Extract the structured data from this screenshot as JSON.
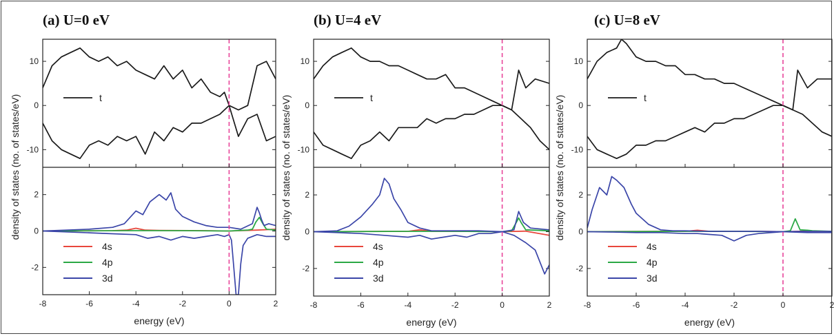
{
  "figure": {
    "ylabel": "density of states (no. of states/eV)",
    "xlabel": "energy (eV)"
  },
  "colors": {
    "t": "#1a1a1a",
    "4s": "#e8463c",
    "4p": "#2aa845",
    "3d": "#3a45a8",
    "fermi": "#e8449a"
  },
  "chart_data": [
    {
      "type": "line",
      "title": "(a) U=0 eV",
      "xlabel": "energy (eV)",
      "ylabel": "density of states (no. of states/eV)",
      "xlim": [
        -8,
        2
      ],
      "xticks": [
        "-8",
        "-6",
        "-4",
        "-2",
        "0",
        "2"
      ],
      "top": {
        "ylim": [
          -14,
          15
        ],
        "yticks": [
          "10",
          "0",
          "-10"
        ],
        "legend": [
          "t"
        ],
        "series": [
          {
            "name": "t",
            "spin": "up",
            "x": [
              -8,
              -7.6,
              -7.2,
              -6.8,
              -6.4,
              -6.0,
              -5.6,
              -5.2,
              -4.8,
              -4.4,
              -4.0,
              -3.6,
              -3.2,
              -2.8,
              -2.4,
              -2.0,
              -1.6,
              -1.2,
              -0.8,
              -0.4,
              -0.2,
              0.0,
              0.4,
              0.8,
              1.2,
              1.6,
              2.0
            ],
            "y": [
              4,
              9,
              11,
              12,
              13,
              11,
              10,
              11,
              9,
              10,
              8,
              7,
              6,
              9,
              6,
              8,
              4,
              6,
              3,
              2,
              3,
              0,
              -1,
              0,
              9,
              10,
              6
            ]
          },
          {
            "name": "t",
            "spin": "down",
            "x": [
              -8,
              -7.6,
              -7.2,
              -6.8,
              -6.4,
              -6.0,
              -5.6,
              -5.2,
              -4.8,
              -4.4,
              -4.0,
              -3.6,
              -3.2,
              -2.8,
              -2.4,
              -2.0,
              -1.6,
              -1.2,
              -0.8,
              -0.4,
              -0.2,
              0.0,
              0.4,
              0.8,
              1.2,
              1.6,
              2.0
            ],
            "y": [
              -4,
              -8,
              -10,
              -11,
              -12,
              -9,
              -8,
              -9,
              -7,
              -8,
              -7,
              -11,
              -6,
              -8,
              -5,
              -6,
              -4,
              -4,
              -3,
              -2,
              -1,
              0,
              -7,
              -3,
              -2,
              -8,
              -7
            ]
          }
        ]
      },
      "bottom": {
        "ylim": [
          -3.5,
          3.5
        ],
        "yticks": [
          "2",
          "0",
          "-2"
        ],
        "legend": [
          "4s",
          "4p",
          "3d"
        ],
        "series": [
          {
            "name": "3d",
            "spin": "up",
            "x": [
              -8,
              -7,
              -6,
              -5,
              -4.5,
              -4.0,
              -3.7,
              -3.4,
              -3.0,
              -2.7,
              -2.5,
              -2.3,
              -2.0,
              -1.5,
              -1.0,
              -0.5,
              0,
              0.5,
              1.0,
              1.2,
              1.3,
              1.4,
              1.5,
              1.7,
              2.0
            ],
            "y": [
              0,
              0.05,
              0.1,
              0.2,
              0.4,
              1.1,
              0.9,
              1.6,
              2.0,
              1.7,
              2.1,
              1.2,
              0.8,
              0.5,
              0.3,
              0.2,
              0.2,
              0.1,
              0.4,
              1.3,
              1.0,
              0.6,
              0.3,
              0.4,
              0.3
            ]
          },
          {
            "name": "3d",
            "spin": "down",
            "x": [
              -8,
              -7,
              -6,
              -5,
              -4,
              -3.5,
              -3,
              -2.5,
              -2,
              -1.5,
              -1,
              -0.5,
              -0.2,
              0,
              0.1,
              0.2,
              0.3,
              0.4,
              0.5,
              0.6,
              0.8,
              1.2,
              1.6,
              2.0
            ],
            "y": [
              0,
              -0.05,
              -0.1,
              -0.15,
              -0.2,
              -0.4,
              -0.3,
              -0.5,
              -0.3,
              -0.4,
              -0.3,
              -0.2,
              -0.3,
              -0.2,
              -0.5,
              -2.0,
              -3.5,
              -3.5,
              -1.8,
              -0.8,
              -0.4,
              -0.2,
              -0.3,
              -0.3
            ]
          },
          {
            "name": "4s",
            "spin": "up",
            "x": [
              -8,
              -5,
              -4.4,
              -4.0,
              -3.6,
              -3.0,
              -1,
              0,
              1.2,
              2.0
            ],
            "y": [
              0,
              0.02,
              0.05,
              0.15,
              0.05,
              0.03,
              0.02,
              0.0,
              0.05,
              0.1
            ]
          },
          {
            "name": "4p",
            "spin": "up",
            "x": [
              -8,
              -4,
              -2,
              0,
              0.8,
              1.0,
              1.15,
              1.3,
              1.45,
              1.6,
              2.0
            ],
            "y": [
              0,
              0.02,
              0.02,
              0.0,
              0.05,
              0.1,
              0.5,
              0.75,
              0.4,
              0.1,
              0.05
            ]
          }
        ]
      }
    },
    {
      "type": "line",
      "title": "(b) U=4 eV",
      "xlabel": "energy (eV)",
      "ylabel": "density of states (no. of states/eV)",
      "xlim": [
        -8,
        2
      ],
      "xticks": [
        "-8",
        "-6",
        "-4",
        "-2",
        "0",
        "2"
      ],
      "top": {
        "ylim": [
          -14,
          15
        ],
        "yticks": [
          "10",
          "0",
          "-10"
        ],
        "legend": [
          "t"
        ],
        "series": [
          {
            "name": "t",
            "spin": "up",
            "x": [
              -8,
              -7.6,
              -7.2,
              -6.8,
              -6.4,
              -6.0,
              -5.6,
              -5.2,
              -4.8,
              -4.4,
              -4.0,
              -3.6,
              -3.2,
              -2.8,
              -2.4,
              -2.0,
              -1.6,
              -1.2,
              -0.8,
              -0.4,
              0.0,
              0.4,
              0.7,
              1.0,
              1.4,
              2.0
            ],
            "y": [
              6,
              9,
              11,
              12,
              13,
              11,
              10,
              10,
              9,
              9,
              8,
              7,
              6,
              6,
              7,
              4,
              4,
              3,
              2,
              1,
              0,
              -1,
              8,
              4,
              6,
              5
            ]
          },
          {
            "name": "t",
            "spin": "down",
            "x": [
              -8,
              -7.6,
              -7.2,
              -6.8,
              -6.4,
              -6.0,
              -5.6,
              -5.2,
              -4.8,
              -4.4,
              -4.0,
              -3.6,
              -3.2,
              -2.8,
              -2.4,
              -2.0,
              -1.6,
              -1.2,
              -0.8,
              -0.4,
              0.0,
              0.4,
              0.8,
              1.2,
              1.6,
              2.0
            ],
            "y": [
              -6,
              -9,
              -10,
              -11,
              -12,
              -9,
              -8,
              -6,
              -8,
              -5,
              -5,
              -5,
              -3,
              -4,
              -3,
              -3,
              -2,
              -2,
              -1,
              0,
              0,
              -1,
              -3,
              -5,
              -8,
              -10
            ]
          }
        ]
      },
      "bottom": {
        "ylim": [
          -3.5,
          3.5
        ],
        "yticks": [
          "2",
          "0",
          "-2"
        ],
        "legend": [
          "4s",
          "4p",
          "3d"
        ],
        "series": [
          {
            "name": "3d",
            "spin": "up",
            "x": [
              -8,
              -7,
              -6.5,
              -6.0,
              -5.5,
              -5.2,
              -5.0,
              -4.8,
              -4.6,
              -4.3,
              -4.0,
              -3.5,
              -3.0,
              -2.0,
              -1.0,
              0,
              0.5,
              0.7,
              0.9,
              1.2,
              2.0
            ],
            "y": [
              0,
              0.05,
              0.3,
              0.8,
              1.5,
              2.0,
              2.9,
              2.6,
              1.8,
              1.2,
              0.5,
              0.2,
              0.05,
              0.05,
              0.05,
              0.0,
              0.1,
              1.1,
              0.5,
              0.2,
              0.1
            ]
          },
          {
            "name": "3d",
            "spin": "down",
            "x": [
              -8,
              -7,
              -6,
              -5,
              -4,
              -3.5,
              -3,
              -2.5,
              -2,
              -1.5,
              -1,
              -0.5,
              0,
              0.5,
              1.0,
              1.4,
              1.8,
              2.0
            ],
            "y": [
              0,
              -0.05,
              -0.1,
              -0.2,
              -0.3,
              -0.2,
              -0.4,
              -0.3,
              -0.2,
              -0.3,
              -0.1,
              -0.1,
              0.0,
              -0.2,
              -0.6,
              -1.0,
              -2.3,
              -1.8
            ]
          },
          {
            "name": "4s",
            "spin": "up",
            "x": [
              -8,
              -5,
              -4.0,
              -3.5,
              -3.0,
              -1,
              0,
              1,
              2.0
            ],
            "y": [
              0,
              0.02,
              0.02,
              0.1,
              0.02,
              0.02,
              0.0,
              0.03,
              -0.2
            ]
          },
          {
            "name": "4p",
            "spin": "up",
            "x": [
              -8,
              -4,
              -2,
              0,
              0.4,
              0.6,
              0.7,
              0.8,
              1.0,
              2.0
            ],
            "y": [
              0,
              0.02,
              0.02,
              0.0,
              0.05,
              0.5,
              0.75,
              0.5,
              0.1,
              0.05
            ]
          }
        ]
      }
    },
    {
      "type": "line",
      "title": "(c) U=8 eV",
      "xlabel": "energy (eV)",
      "ylabel": "density of states (no. of states/eV)",
      "xlim": [
        -8,
        2
      ],
      "xticks": [
        "-8",
        "-6",
        "-4",
        "-2",
        "0",
        "2"
      ],
      "top": {
        "ylim": [
          -14,
          15
        ],
        "yticks": [
          "10",
          "0",
          "-10"
        ],
        "legend": [
          "t"
        ],
        "series": [
          {
            "name": "t",
            "spin": "up",
            "x": [
              -8,
              -7.6,
              -7.2,
              -6.8,
              -6.6,
              -6.4,
              -6.0,
              -5.6,
              -5.2,
              -4.8,
              -4.4,
              -4.0,
              -3.6,
              -3.2,
              -2.8,
              -2.4,
              -2.0,
              -1.6,
              -1.2,
              -0.8,
              -0.4,
              0.0,
              0.4,
              0.6,
              1.0,
              1.4,
              2.0
            ],
            "y": [
              6,
              10,
              12,
              13,
              15,
              14,
              11,
              10,
              10,
              9,
              9,
              7,
              7,
              6,
              6,
              5,
              5,
              4,
              3,
              2,
              1,
              0,
              -1,
              8,
              4,
              6,
              6
            ]
          },
          {
            "name": "t",
            "spin": "down",
            "x": [
              -8,
              -7.6,
              -7.2,
              -6.8,
              -6.4,
              -6.0,
              -5.6,
              -5.2,
              -4.8,
              -4.4,
              -4.0,
              -3.6,
              -3.2,
              -2.8,
              -2.4,
              -2.0,
              -1.6,
              -1.2,
              -0.8,
              -0.4,
              0.0,
              0.4,
              0.8,
              1.2,
              1.6,
              2.0
            ],
            "y": [
              -7,
              -10,
              -11,
              -12,
              -11,
              -9,
              -9,
              -8,
              -8,
              -7,
              -6,
              -5,
              -6,
              -4,
              -4,
              -3,
              -3,
              -2,
              -1,
              0,
              0,
              -1,
              -2,
              -4,
              -6,
              -7
            ]
          }
        ]
      },
      "bottom": {
        "ylim": [
          -3.5,
          3.5
        ],
        "yticks": [
          "2",
          "0",
          "-2"
        ],
        "legend": [
          "4s",
          "4p",
          "3d"
        ],
        "series": [
          {
            "name": "3d",
            "spin": "up",
            "x": [
              -8,
              -7.8,
              -7.5,
              -7.2,
              -7.0,
              -6.8,
              -6.5,
              -6.2,
              -6.0,
              -5.5,
              -5.0,
              -4.5,
              -4.0,
              -3,
              -2,
              -1,
              0,
              1,
              2.0
            ],
            "y": [
              0.2,
              1.2,
              2.4,
              2.0,
              3.0,
              2.8,
              2.4,
              1.5,
              1.0,
              0.4,
              0.1,
              0.05,
              0.05,
              0.02,
              0.02,
              0.02,
              0.0,
              0.02,
              0.02
            ]
          },
          {
            "name": "3d",
            "spin": "down",
            "x": [
              -8,
              -7,
              -6,
              -5,
              -4,
              -3.5,
              -3,
              -2.5,
              -2.0,
              -1.5,
              -1,
              0,
              1,
              2.0
            ],
            "y": [
              0,
              -0.02,
              -0.05,
              -0.05,
              -0.1,
              -0.1,
              -0.15,
              -0.2,
              -0.5,
              -0.2,
              -0.1,
              0.0,
              -0.05,
              -0.05
            ]
          },
          {
            "name": "4s",
            "spin": "up",
            "x": [
              -8,
              -5,
              -4.0,
              -3.5,
              -3.0,
              -1,
              0,
              1,
              2.0
            ],
            "y": [
              0,
              0.02,
              0.02,
              0.08,
              0.02,
              0.02,
              0.0,
              0.03,
              0.02
            ]
          },
          {
            "name": "4p",
            "spin": "up",
            "x": [
              -8,
              -4,
              -2,
              0,
              0.3,
              0.5,
              0.7,
              1.0,
              1.2,
              2.0
            ],
            "y": [
              0,
              0.02,
              0.02,
              0.0,
              0.05,
              0.7,
              0.1,
              0.08,
              0.05,
              0.02
            ]
          }
        ]
      }
    }
  ]
}
